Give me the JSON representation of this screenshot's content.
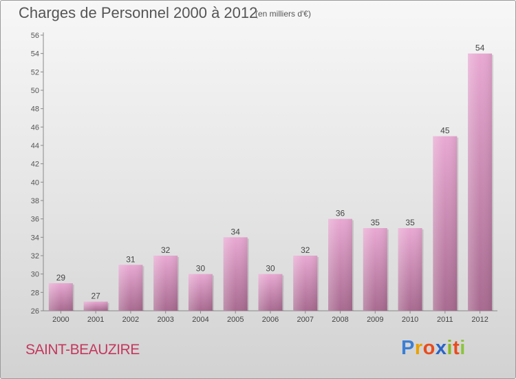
{
  "header": {
    "title": "Charges de Personnel 2000 à 2012",
    "subtitle": "(en milliers d'€)"
  },
  "commune": "SAINT-BEAUZIRE",
  "logo": {
    "text": "Proxiti",
    "letters": [
      "P",
      "r",
      "o",
      "x",
      "i",
      "t",
      "i"
    ],
    "colors": [
      "#3a7fd5",
      "#e8a100",
      "#e84c1e",
      "#2a64c6",
      "#89b81f",
      "#e84c1e",
      "#8cc43d"
    ]
  },
  "colors": {
    "bar_light": "#e8a8d2",
    "bar_dark": "#a86a90",
    "text": "#555555"
  },
  "chart_data": {
    "type": "bar",
    "title": "Charges de Personnel 2000 à 2012",
    "subtitle": "(en milliers d'€)",
    "categories": [
      "2000",
      "2001",
      "2002",
      "2003",
      "2004",
      "2005",
      "2006",
      "2007",
      "2008",
      "2009",
      "2010",
      "2011",
      "2012"
    ],
    "values": [
      29,
      27,
      31,
      32,
      30,
      34,
      30,
      32,
      36,
      35,
      35,
      45,
      54
    ],
    "ylim": [
      26,
      56
    ],
    "yticks": [
      26,
      28,
      30,
      32,
      34,
      36,
      38,
      40,
      42,
      44,
      46,
      48,
      50,
      52,
      54,
      56
    ],
    "xlabel": "",
    "ylabel": "",
    "grid": false,
    "legend": "none"
  }
}
